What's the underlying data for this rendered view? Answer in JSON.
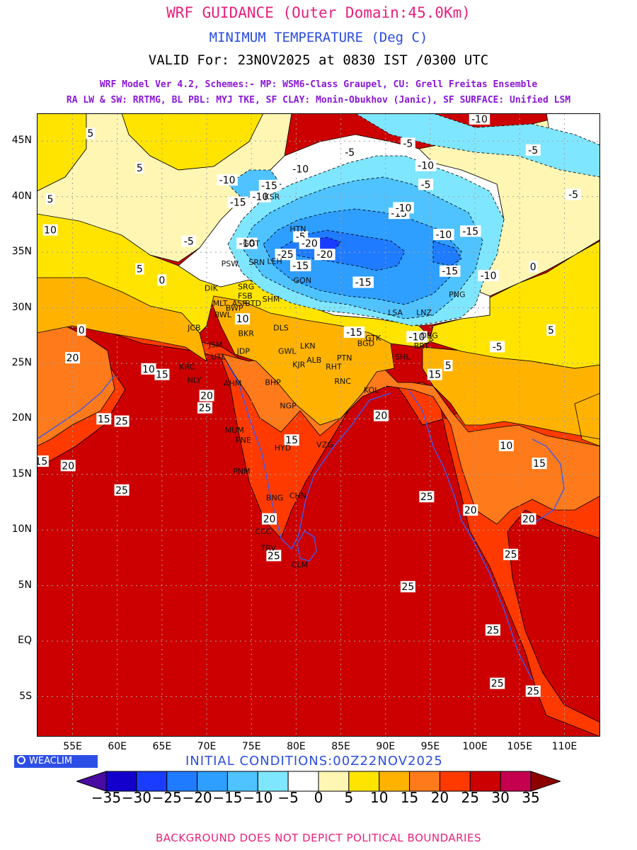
{
  "header": {
    "title": "WRF GUIDANCE (Outer Domain:45.0Km)",
    "variable": "MINIMUM TEMPERATURE (Deg C)",
    "valid": "VALID For: 23NOV2025 at 0830 IST /0300 UTC",
    "model_line1": "WRF Model Ver 4.2, Schemes:- MP: WSM6-Class Graupel, CU: Grell Freitas Ensemble",
    "model_line2": "RA LW & SW: RRTMG, BL PBL: MYJ TKE, SF CLAY: Monin-Obukhov (Janic), SF SURFACE: Unified LSM"
  },
  "map": {
    "lat_labels": [
      "45N",
      "40N",
      "35N",
      "30N",
      "25N",
      "20N",
      "15N",
      "10N",
      "5N",
      "EQ",
      "5S"
    ],
    "lon_labels": [
      "55E",
      "60E",
      "65E",
      "70E",
      "75E",
      "80E",
      "85E",
      "90E",
      "95E",
      "100E",
      "105E",
      "110E"
    ],
    "contour_labels": [
      {
        "text": "10",
        "lon": 52.5,
        "lat": 37.0
      },
      {
        "text": "5",
        "lon": 57.0,
        "lat": 45.7
      },
      {
        "text": "5",
        "lon": 62.5,
        "lat": 42.6
      },
      {
        "text": "5",
        "lon": 52.5,
        "lat": 39.8
      },
      {
        "text": "-5",
        "lon": 68.0,
        "lat": 36.0
      },
      {
        "text": "-10",
        "lon": 72.3,
        "lat": 41.5
      },
      {
        "text": "-15",
        "lon": 73.5,
        "lat": 39.5
      },
      {
        "text": "-10",
        "lon": 76.0,
        "lat": 40.0
      },
      {
        "text": "-15",
        "lon": 77.0,
        "lat": 41.0
      },
      {
        "text": "-10",
        "lon": 80.5,
        "lat": 42.5
      },
      {
        "text": "-5",
        "lon": 86.0,
        "lat": 44.0
      },
      {
        "text": "-5",
        "lon": 92.5,
        "lat": 44.8
      },
      {
        "text": "-10",
        "lon": 94.5,
        "lat": 42.8
      },
      {
        "text": "-5",
        "lon": 94.5,
        "lat": 41.1
      },
      {
        "text": "-10",
        "lon": 100.5,
        "lat": 47.0
      },
      {
        "text": "-5",
        "lon": 106.5,
        "lat": 44.2
      },
      {
        "text": "-5",
        "lon": 111.0,
        "lat": 40.2
      },
      {
        "text": "-15",
        "lon": 91.5,
        "lat": 38.5
      },
      {
        "text": "-10",
        "lon": 92.0,
        "lat": 39.0
      },
      {
        "text": "-10",
        "lon": 96.5,
        "lat": 36.6
      },
      {
        "text": "-15",
        "lon": 99.5,
        "lat": 36.9
      },
      {
        "text": "-10",
        "lon": 74.5,
        "lat": 35.8
      },
      {
        "text": "-5",
        "lon": 80.5,
        "lat": 36.4
      },
      {
        "text": "-20",
        "lon": 81.5,
        "lat": 35.8
      },
      {
        "text": "-20",
        "lon": 83.2,
        "lat": 34.8
      },
      {
        "text": "-25",
        "lon": 78.8,
        "lat": 34.8
      },
      {
        "text": "-15",
        "lon": 80.5,
        "lat": 33.8
      },
      {
        "text": "-15",
        "lon": 87.5,
        "lat": 32.3
      },
      {
        "text": "-15",
        "lon": 97.2,
        "lat": 33.3
      },
      {
        "text": "-10",
        "lon": 101.5,
        "lat": 32.9
      },
      {
        "text": "-15",
        "lon": 86.5,
        "lat": 27.8
      },
      {
        "text": "-10",
        "lon": 93.5,
        "lat": 27.4
      },
      {
        "text": "-5",
        "lon": 102.5,
        "lat": 26.5
      },
      {
        "text": "0",
        "lon": 65.0,
        "lat": 32.5
      },
      {
        "text": "0",
        "lon": 56.0,
        "lat": 28.0
      },
      {
        "text": "0",
        "lon": 106.5,
        "lat": 33.7
      },
      {
        "text": "5",
        "lon": 62.5,
        "lat": 33.5
      },
      {
        "text": "5",
        "lon": 108.5,
        "lat": 28.0
      },
      {
        "text": "5",
        "lon": 97.0,
        "lat": 24.8
      },
      {
        "text": "10",
        "lon": 74.0,
        "lat": 29.0
      },
      {
        "text": "10",
        "lon": 63.5,
        "lat": 24.5
      },
      {
        "text": "10",
        "lon": 103.5,
        "lat": 17.6
      },
      {
        "text": "15",
        "lon": 65.0,
        "lat": 24.0
      },
      {
        "text": "15",
        "lon": 58.5,
        "lat": 20.0
      },
      {
        "text": "15",
        "lon": 51.5,
        "lat": 16.2
      },
      {
        "text": "15",
        "lon": 79.5,
        "lat": 18.1
      },
      {
        "text": "15",
        "lon": 95.5,
        "lat": 24.0
      },
      {
        "text": "15",
        "lon": 107.2,
        "lat": 16.0
      },
      {
        "text": "20",
        "lon": 55.0,
        "lat": 25.5
      },
      {
        "text": "20",
        "lon": 54.5,
        "lat": 15.8
      },
      {
        "text": "20",
        "lon": 70.0,
        "lat": 22.1
      },
      {
        "text": "20",
        "lon": 89.5,
        "lat": 20.3
      },
      {
        "text": "20",
        "lon": 77.0,
        "lat": 11.0
      },
      {
        "text": "20",
        "lon": 99.5,
        "lat": 11.8
      },
      {
        "text": "20",
        "lon": 106.0,
        "lat": 11.0
      },
      {
        "text": "25",
        "lon": 69.8,
        "lat": 21.0
      },
      {
        "text": "25",
        "lon": 60.5,
        "lat": 19.8
      },
      {
        "text": "25",
        "lon": 60.5,
        "lat": 13.6
      },
      {
        "text": "25",
        "lon": 94.6,
        "lat": 13.0
      },
      {
        "text": "25",
        "lon": 77.5,
        "lat": 7.7
      },
      {
        "text": "25",
        "lon": 104.0,
        "lat": 7.8
      },
      {
        "text": "25",
        "lon": 92.5,
        "lat": 4.9
      },
      {
        "text": "25",
        "lon": 102.0,
        "lat": 1.0
      },
      {
        "text": "25",
        "lon": 102.5,
        "lat": -3.8
      },
      {
        "text": "25",
        "lon": 106.5,
        "lat": -4.5
      }
    ],
    "stations": [
      {
        "code": "KSR",
        "lon": 77.3,
        "lat": 40.0
      },
      {
        "code": "HTN",
        "lon": 80.2,
        "lat": 37.1
      },
      {
        "code": "GGT",
        "lon": 75.0,
        "lat": 35.8
      },
      {
        "code": "PSW",
        "lon": 72.6,
        "lat": 34.0
      },
      {
        "code": "SRN",
        "lon": 75.6,
        "lat": 34.1
      },
      {
        "code": "LEH",
        "lon": 77.6,
        "lat": 34.2
      },
      {
        "code": "GON",
        "lon": 80.7,
        "lat": 32.5
      },
      {
        "code": "DIK",
        "lon": 70.5,
        "lat": 31.8
      },
      {
        "code": "SRG",
        "lon": 74.4,
        "lat": 31.9
      },
      {
        "code": "FSB",
        "lon": 74.3,
        "lat": 31.1
      },
      {
        "code": "MLT",
        "lon": 71.5,
        "lat": 30.4
      },
      {
        "code": "BWP",
        "lon": 73.1,
        "lat": 30.0
      },
      {
        "code": "ASR",
        "lon": 73.7,
        "lat": 30.4
      },
      {
        "code": "BTD",
        "lon": 75.2,
        "lat": 30.4
      },
      {
        "code": "SHM",
        "lon": 77.2,
        "lat": 30.8
      },
      {
        "code": "BWL",
        "lon": 71.8,
        "lat": 29.4
      },
      {
        "code": "JCB",
        "lon": 68.6,
        "lat": 28.2
      },
      {
        "code": "DLS",
        "lon": 78.3,
        "lat": 28.2
      },
      {
        "code": "BKR",
        "lon": 74.4,
        "lat": 27.7
      },
      {
        "code": "JSM",
        "lon": 71.0,
        "lat": 26.7
      },
      {
        "code": "JDP",
        "lon": 74.1,
        "lat": 26.1
      },
      {
        "code": "UTL",
        "lon": 71.3,
        "lat": 25.6
      },
      {
        "code": "LKN",
        "lon": 81.3,
        "lat": 26.6
      },
      {
        "code": "GWL",
        "lon": 79.0,
        "lat": 26.1
      },
      {
        "code": "ALB",
        "lon": 82.0,
        "lat": 25.3
      },
      {
        "code": "KJR",
        "lon": 80.3,
        "lat": 24.9
      },
      {
        "code": "PTN",
        "lon": 85.4,
        "lat": 25.5
      },
      {
        "code": "RHT",
        "lon": 84.2,
        "lat": 24.7
      },
      {
        "code": "BGD",
        "lon": 87.8,
        "lat": 26.8
      },
      {
        "code": "KRC",
        "lon": 67.8,
        "lat": 24.7
      },
      {
        "code": "NLY",
        "lon": 68.6,
        "lat": 23.5
      },
      {
        "code": "AHM",
        "lon": 72.9,
        "lat": 23.2
      },
      {
        "code": "BHP",
        "lon": 77.4,
        "lat": 23.3
      },
      {
        "code": "RNC",
        "lon": 85.2,
        "lat": 23.4
      },
      {
        "code": "KOL",
        "lon": 88.4,
        "lat": 22.6
      },
      {
        "code": "NGP",
        "lon": 79.1,
        "lat": 21.2
      },
      {
        "code": "MUM",
        "lon": 73.1,
        "lat": 19.0
      },
      {
        "code": "PNE",
        "lon": 74.1,
        "lat": 18.1
      },
      {
        "code": "HYD",
        "lon": 78.5,
        "lat": 17.4
      },
      {
        "code": "VZG",
        "lon": 83.2,
        "lat": 17.7
      },
      {
        "code": "PNM",
        "lon": 73.9,
        "lat": 15.3
      },
      {
        "code": "BNG",
        "lon": 77.6,
        "lat": 12.9
      },
      {
        "code": "CHN",
        "lon": 80.2,
        "lat": 13.1
      },
      {
        "code": "CCC",
        "lon": 76.3,
        "lat": 9.9
      },
      {
        "code": "TRV",
        "lon": 76.9,
        "lat": 8.4
      },
      {
        "code": "CLM",
        "lon": 80.4,
        "lat": 6.9
      },
      {
        "code": "LSA",
        "lon": 91.1,
        "lat": 29.6
      },
      {
        "code": "LNZ",
        "lon": 94.3,
        "lat": 29.6
      },
      {
        "code": "PNG",
        "lon": 98.0,
        "lat": 31.2
      },
      {
        "code": "GTK",
        "lon": 88.6,
        "lat": 27.3
      },
      {
        "code": "SHL",
        "lon": 91.9,
        "lat": 25.6
      },
      {
        "code": "DBG",
        "lon": 94.9,
        "lat": 27.5
      },
      {
        "code": "BRT",
        "lon": 94.0,
        "lat": 26.6
      }
    ]
  },
  "brand": {
    "text": "WEACLIM",
    "icon": "globe-icon"
  },
  "initial_conditions": "INITIAL CONDITIONS:00Z22NOV2025",
  "colorbar": {
    "ticks": [
      "-35",
      "-30",
      "-25",
      "-20",
      "-15",
      "-10",
      "-5",
      "0",
      "5",
      "10",
      "15",
      "20",
      "25",
      "30",
      "35"
    ],
    "colors": [
      "#4a0ba3",
      "#1300cc",
      "#1a3cff",
      "#1f7bff",
      "#2e9eff",
      "#4fc3ff",
      "#7fe6ff",
      "#ffffff",
      "#fff6b4",
      "#ffe400",
      "#ffb300",
      "#ff7a1a",
      "#ff3a00",
      "#cc0000",
      "#c4004f",
      "#8c0000"
    ]
  },
  "footer": "BACKGROUND DOES NOT DEPICT POLITICAL BOUNDARIES"
}
